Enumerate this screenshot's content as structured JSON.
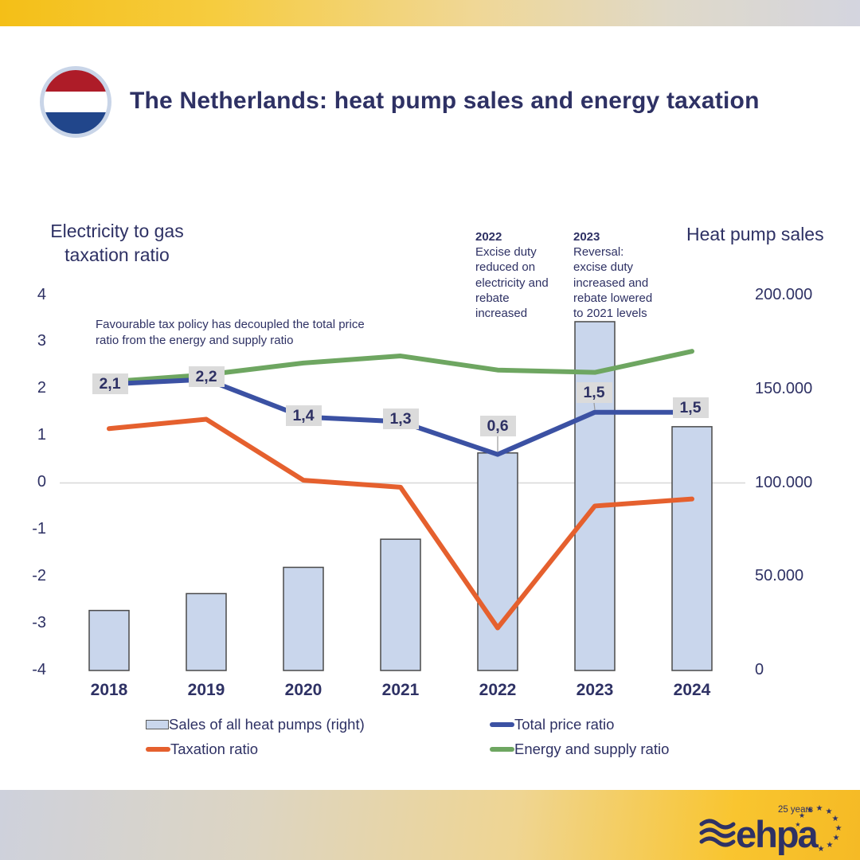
{
  "header": {
    "title": "The Netherlands: heat pump sales and energy taxation"
  },
  "chart_data": {
    "type": "combo",
    "title": "The Netherlands: heat pump sales and energy taxation",
    "categories": [
      "2018",
      "2019",
      "2020",
      "2021",
      "2022",
      "2023",
      "2024"
    ],
    "bars": {
      "name": "Sales of all heat pumps (right)",
      "axis": "right",
      "values": [
        32000,
        41000,
        55000,
        70000,
        116000,
        186000,
        130000
      ],
      "fill": "#C9D6EC",
      "border": "#4A4A4A"
    },
    "lines": [
      {
        "id": "energy",
        "name": "Energy and supply ratio",
        "color": "#6EA661",
        "values": [
          2.15,
          2.3,
          2.55,
          2.7,
          2.4,
          2.35,
          2.8
        ]
      },
      {
        "id": "taxation",
        "name": "Taxation ratio",
        "color": "#E5602E",
        "values": [
          1.15,
          1.35,
          0.05,
          -0.1,
          -3.1,
          -0.5,
          -0.35
        ]
      },
      {
        "id": "price",
        "name": "Total price ratio",
        "color": "#3B51A3",
        "values": [
          2.1,
          2.2,
          1.4,
          1.3,
          0.6,
          1.5,
          1.5
        ],
        "point_labels": [
          "2,1",
          "2,2",
          "1,4",
          "1,3",
          "0,6",
          "1,5",
          "1,5"
        ]
      }
    ],
    "left_axis": {
      "title_lines": [
        "Electricity to gas",
        "taxation ratio"
      ],
      "ticks": [
        "4",
        "3",
        "2",
        "1",
        "0",
        "-1",
        "-2",
        "-3",
        "-4"
      ],
      "range": [
        -4,
        4
      ],
      "gridline_at": 0
    },
    "right_axis": {
      "title": "Heat pump sales",
      "ticks": [
        "200.000",
        "150.000",
        "100.000",
        "50.000",
        "0"
      ],
      "range": [
        0,
        200000
      ]
    },
    "legend_position": "bottom"
  },
  "annotations": {
    "note": "Favourable tax policy has decoupled the total price ratio from the energy and supply ratio",
    "y2022_title": "2022",
    "y2022_text": "Excise duty reduced on electricity and rebate increased",
    "y2023_title": "2023",
    "y2023_text": "Reversal: excise duty increased and rebate lowered to 2021 levels"
  },
  "legend": [
    {
      "label": "Sales of all heat pumps (right)",
      "type": "bar",
      "color": "#C9D6EC"
    },
    {
      "label": "Total price ratio",
      "type": "line",
      "color": "#3B51A3"
    },
    {
      "label": "Taxation ratio",
      "type": "line",
      "color": "#E5602E"
    },
    {
      "label": "Energy and supply ratio",
      "type": "line",
      "color": "#6EA661"
    }
  ],
  "logo": {
    "brand": "ehpa",
    "anniversary": "25 years"
  },
  "colors": {
    "navy_text": "#2E3164",
    "bar_fill": "#C9D6EC",
    "label_bg": "#DBDBDB",
    "gridline": "#D8D8D8",
    "flag_red": "#AE1C28",
    "flag_blue": "#21468B"
  }
}
